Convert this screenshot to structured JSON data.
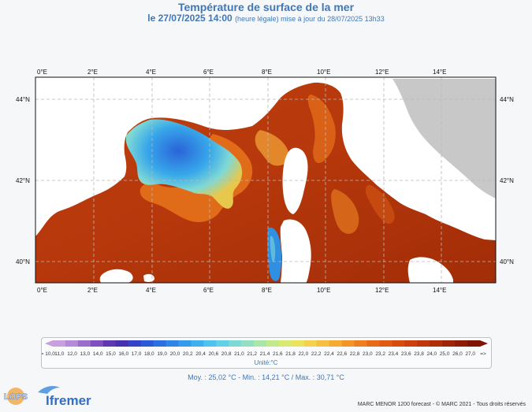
{
  "header": {
    "title": "Température de surface de la mer",
    "date_main": "le 27/07/2025 14:00",
    "date_note": "(heure légale) mise à jour du 28/07/2025 13h33"
  },
  "map": {
    "lon_labels": [
      "0°E",
      "2°E",
      "4°E",
      "6°E",
      "8°E",
      "10°E",
      "12°E",
      "14°E"
    ],
    "lat_labels": [
      "44°N",
      "42°N",
      "40°N"
    ],
    "colors": {
      "land": "#c8c8c8",
      "sea_warm": "#b93a0c",
      "sea_cool": "#2f8fe0",
      "frame": "#111111"
    }
  },
  "legend": {
    "labels": [
      "≤= 10,0",
      "11,0",
      "12,0",
      "13,0",
      "14,0",
      "15,0",
      "16,0",
      "17,0",
      "18,0",
      "19,0",
      "20,0",
      "20,2",
      "20,4",
      "20,6",
      "20,8",
      "21,0",
      "21,2",
      "21,4",
      "21,6",
      "21,8",
      "22,0",
      "22,2",
      "22,4",
      "22,6",
      "22,8",
      "23,0",
      "23,2",
      "23,4",
      "23,6",
      "23,8",
      "24,0",
      "25,0",
      "26,0",
      "27,0",
      "=>"
    ],
    "unit": "Unité:°C"
  },
  "stats": {
    "text": "Moy. : 25,02 °C   -   Min. : 14,21 °C / Max. : 30,71 °C"
  },
  "footer": {
    "credit": "MARC MENOR 1200 forecast - © MARC 2021 - Tous droits réservés",
    "logo_left": "LOPS",
    "logo_right": "Ifremer"
  }
}
